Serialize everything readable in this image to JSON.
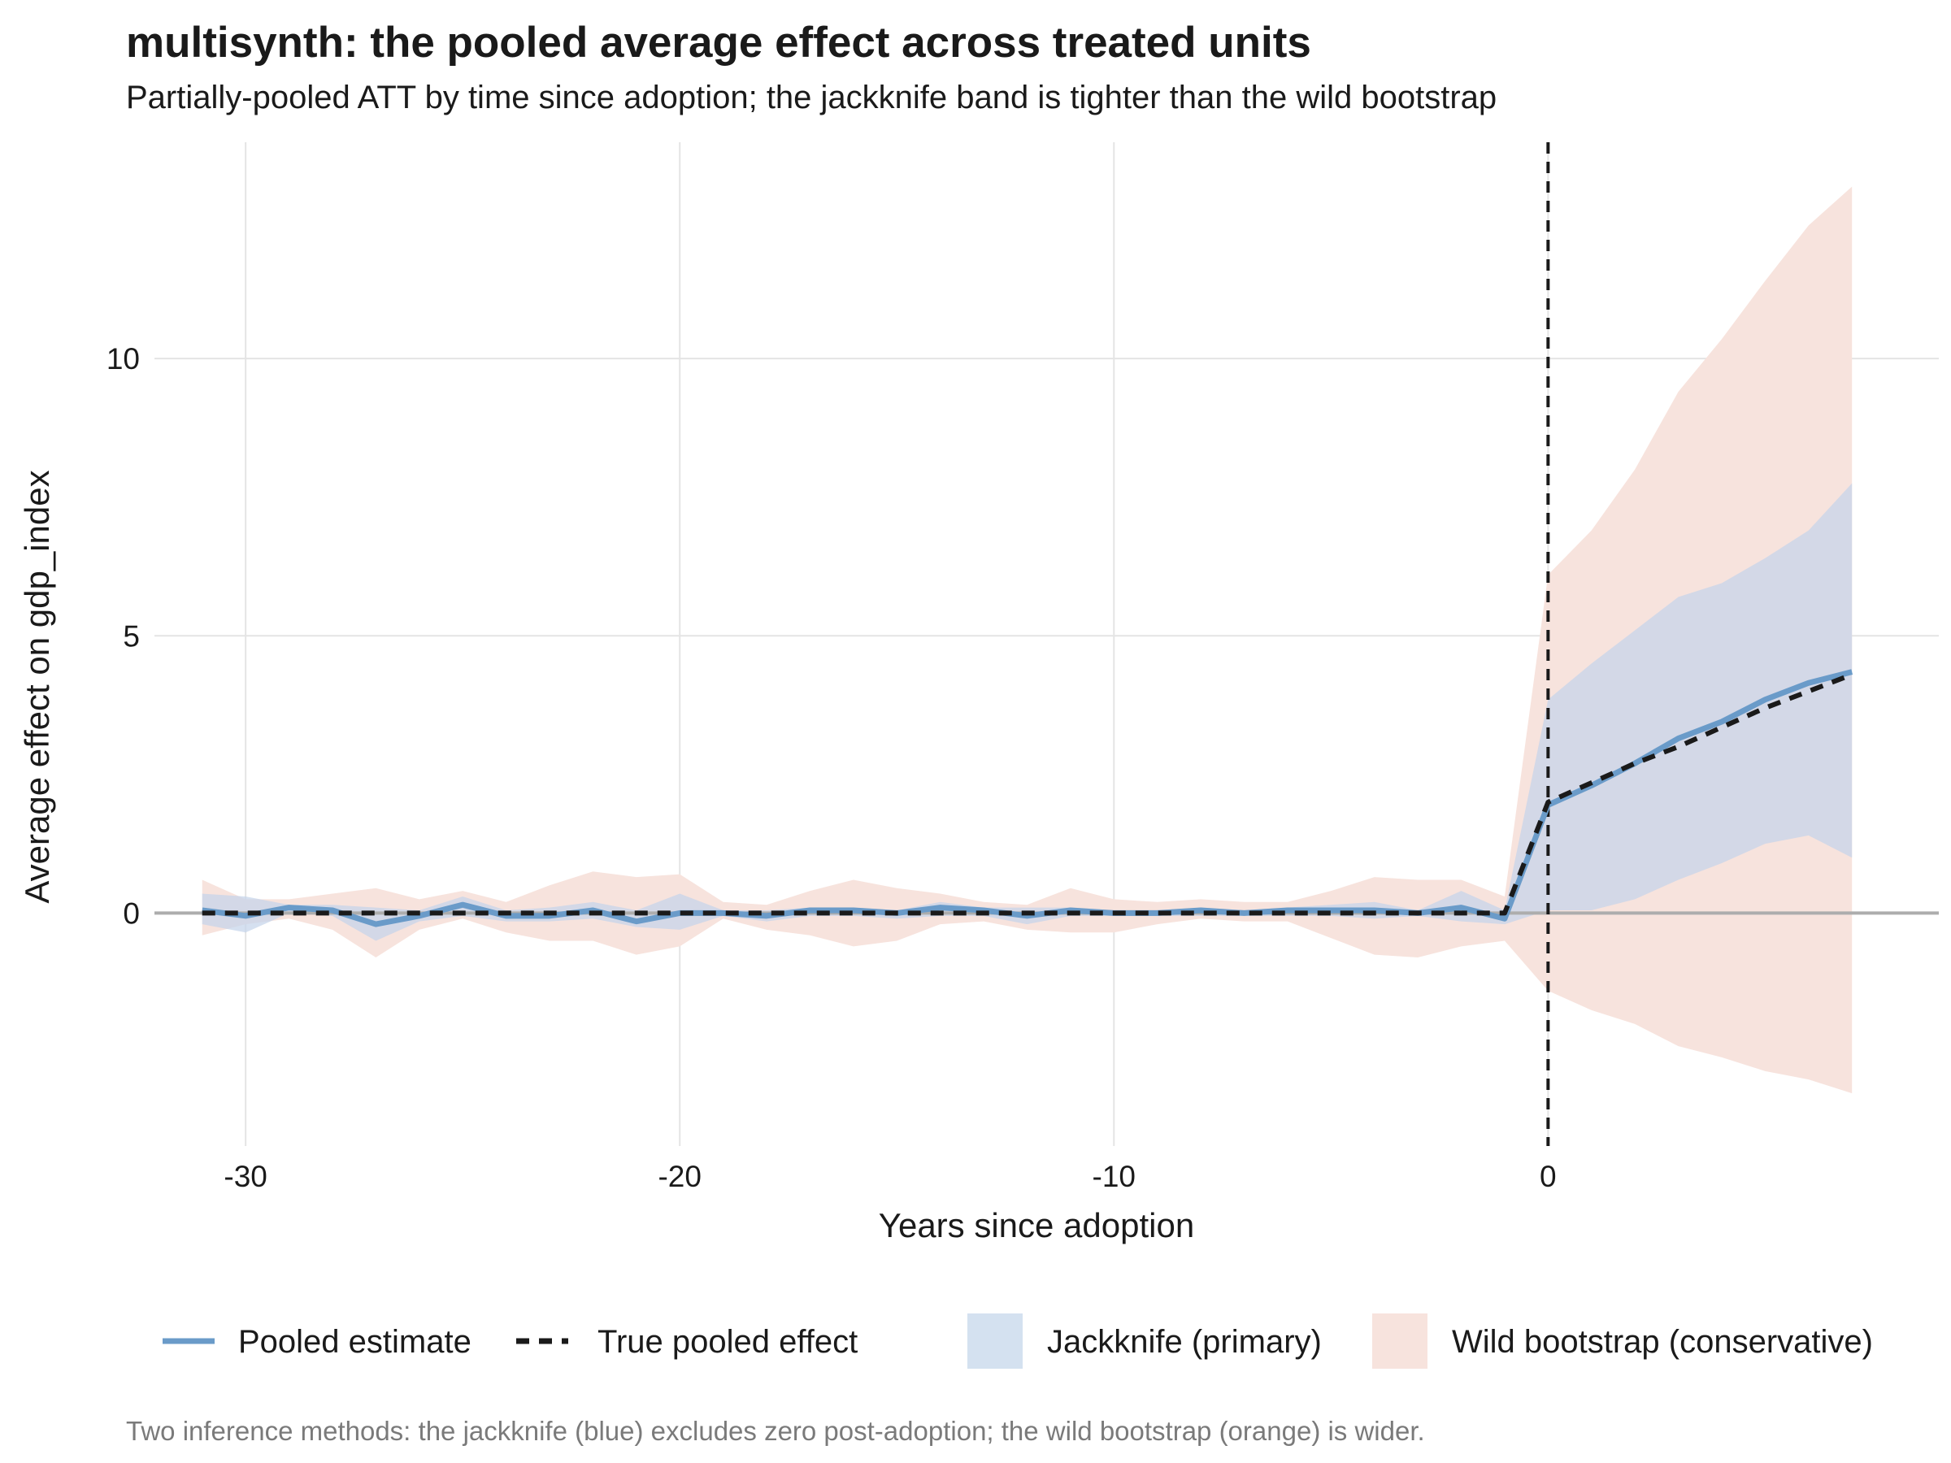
{
  "chart_data": {
    "type": "line",
    "title": "multisynth: the pooled average effect across treated units",
    "subtitle": "Partially-pooled ATT by time since adoption; the jackknife band is tighter than the wild bootstrap",
    "caption": "Two inference methods: the jackknife (blue) excludes zero post-adoption; the wild bootstrap (orange) is wider.",
    "xlabel": "Years since adoption",
    "ylabel": "Average effect on gdp_index",
    "xlim": [
      -32.1,
      9.0
    ],
    "ylim": [
      -4.2,
      13.9
    ],
    "x_ticks": [
      {
        "value": -30,
        "label": "-30"
      },
      {
        "value": -20,
        "label": "-20"
      },
      {
        "value": -10,
        "label": "-10"
      },
      {
        "value": 0,
        "label": "0"
      }
    ],
    "y_ticks": [
      {
        "value": 0,
        "label": "0"
      },
      {
        "value": 5,
        "label": "5"
      },
      {
        "value": 10,
        "label": "10"
      }
    ],
    "grid": true,
    "reference_lines": {
      "horizontal_y": 0,
      "vertical_x": 0
    },
    "x": [
      -31,
      -30,
      -29,
      -28,
      -27,
      -26,
      -25,
      -24,
      -23,
      -22,
      -21,
      -20,
      -19,
      -18,
      -17,
      -16,
      -15,
      -14,
      -13,
      -12,
      -11,
      -10,
      -9,
      -8,
      -7,
      -6,
      -5,
      -4,
      -3,
      -2,
      -1,
      0,
      1,
      2,
      3,
      4,
      5,
      6,
      7
    ],
    "series": [
      {
        "name": "Pooled estimate",
        "style": "solid",
        "color": "#6a9bc9",
        "values": [
          0.05,
          -0.05,
          0.1,
          0.05,
          -0.2,
          -0.05,
          0.15,
          -0.05,
          -0.05,
          0.05,
          -0.15,
          0.0,
          0.0,
          -0.05,
          0.05,
          0.05,
          0.0,
          0.1,
          0.05,
          -0.05,
          0.05,
          0.0,
          0.0,
          0.05,
          0.0,
          0.05,
          0.05,
          0.05,
          0.0,
          0.1,
          -0.1,
          1.95,
          2.3,
          2.7,
          3.15,
          3.45,
          3.85,
          4.15,
          4.35
        ]
      },
      {
        "name": "True pooled effect",
        "style": "dashed",
        "color": "#1a1a1a",
        "values": [
          0,
          0,
          0,
          0,
          0,
          0,
          0,
          0,
          0,
          0,
          0,
          0,
          0,
          0,
          0,
          0,
          0,
          0,
          0,
          0,
          0,
          0,
          0,
          0,
          0,
          0,
          0,
          0,
          0,
          0,
          0,
          2.0,
          2.35,
          2.7,
          3.0,
          3.35,
          3.7,
          4.0,
          4.3
        ]
      }
    ],
    "bands": [
      {
        "name": "Jackknife (primary)",
        "color": "#c5d4ea",
        "lower": [
          -0.2,
          -0.35,
          0.0,
          -0.05,
          -0.5,
          -0.15,
          -0.05,
          -0.15,
          -0.15,
          -0.1,
          -0.25,
          -0.3,
          -0.05,
          -0.15,
          -0.05,
          -0.05,
          -0.1,
          -0.05,
          -0.05,
          -0.2,
          -0.05,
          -0.05,
          -0.05,
          -0.05,
          -0.05,
          -0.05,
          -0.05,
          -0.1,
          -0.05,
          -0.15,
          -0.2,
          0.05,
          0.05,
          0.25,
          0.6,
          0.9,
          1.25,
          1.4,
          1.0
        ],
        "upper": [
          0.35,
          0.3,
          0.15,
          0.15,
          0.1,
          0.05,
          0.3,
          0.05,
          0.1,
          0.2,
          0.05,
          0.35,
          0.05,
          0.05,
          0.1,
          0.1,
          0.05,
          0.2,
          0.1,
          0.1,
          0.1,
          0.05,
          0.05,
          0.1,
          0.05,
          0.1,
          0.15,
          0.2,
          0.05,
          0.4,
          0.05,
          3.85,
          4.5,
          5.1,
          5.7,
          5.95,
          6.4,
          6.9,
          7.75
        ]
      },
      {
        "name": "Wild bootstrap (conservative)",
        "color": "#f7e3dd",
        "lower": [
          -0.4,
          -0.2,
          -0.1,
          -0.3,
          -0.8,
          -0.3,
          -0.1,
          -0.35,
          -0.5,
          -0.5,
          -0.75,
          -0.6,
          -0.1,
          -0.3,
          -0.4,
          -0.6,
          -0.5,
          -0.2,
          -0.15,
          -0.3,
          -0.35,
          -0.35,
          -0.2,
          -0.1,
          -0.15,
          -0.15,
          -0.45,
          -0.75,
          -0.8,
          -0.6,
          -0.5,
          -1.4,
          -1.75,
          -2.0,
          -2.4,
          -2.6,
          -2.85,
          -3.0,
          -3.25
        ],
        "upper": [
          0.6,
          0.25,
          0.25,
          0.35,
          0.45,
          0.25,
          0.4,
          0.2,
          0.5,
          0.75,
          0.65,
          0.7,
          0.2,
          0.15,
          0.4,
          0.6,
          0.45,
          0.35,
          0.2,
          0.15,
          0.45,
          0.25,
          0.2,
          0.25,
          0.2,
          0.2,
          0.4,
          0.65,
          0.6,
          0.6,
          0.3,
          6.1,
          6.9,
          8.0,
          9.4,
          10.35,
          11.4,
          12.4,
          13.1
        ]
      }
    ],
    "legend": {
      "placement": "bottom",
      "items": [
        {
          "label": "Pooled estimate",
          "kind": "line-solid",
          "color": "#6a9bc9"
        },
        {
          "label": "True pooled effect",
          "kind": "line-dashed",
          "color": "#1a1a1a"
        },
        {
          "label": "Jackknife (primary)",
          "kind": "fill",
          "color": "#d4e1f0"
        },
        {
          "label": "Wild bootstrap (conservative)",
          "kind": "fill",
          "color": "#f7e3dd"
        }
      ]
    }
  }
}
